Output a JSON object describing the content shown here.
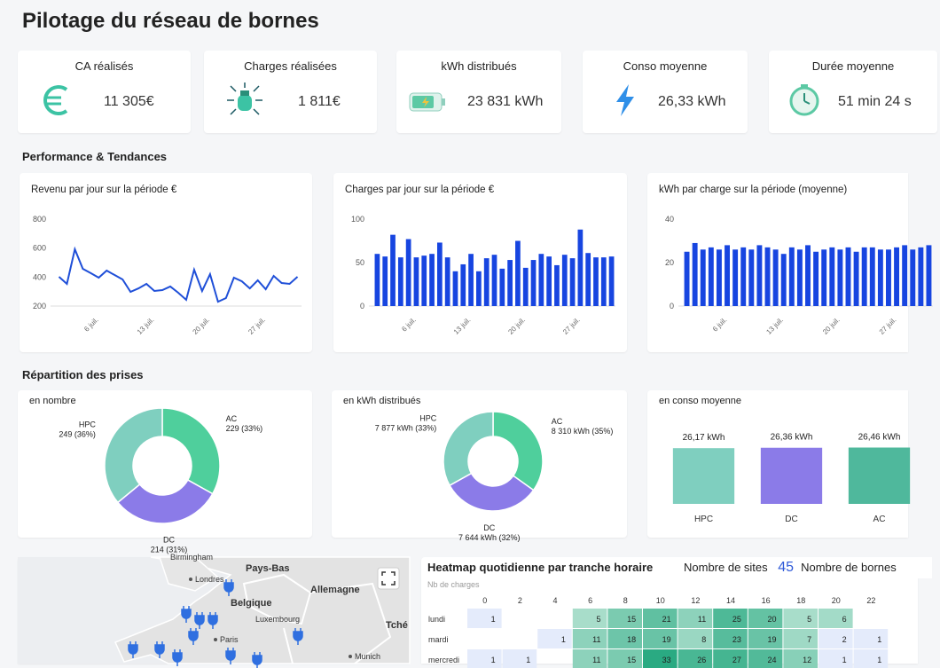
{
  "header": {
    "title": "Pilotage du réseau de bornes"
  },
  "kpis": [
    {
      "label": "CA réalisés",
      "value": "11 305€"
    },
    {
      "label": "Charges réalisées",
      "value": "1 811€"
    },
    {
      "label": "kWh distribués",
      "value": "23 831 kWh"
    },
    {
      "label": "Conso moyenne",
      "value": "26,33 kWh"
    },
    {
      "label": "Durée moyenne",
      "value": "51 min 24 s"
    }
  ],
  "sections": [
    "Performance & Tendances",
    "Répartition des prises"
  ],
  "chart_data": [
    {
      "type": "line",
      "title": "Revenu par jour sur la période €",
      "categories": [
        null,
        null,
        null,
        null,
        null,
        "6 juil.",
        null,
        null,
        null,
        null,
        null,
        null,
        "13 juil.",
        null,
        null,
        null,
        null,
        null,
        null,
        "20 juil.",
        null,
        null,
        null,
        null,
        null,
        null,
        "27 juil.",
        null,
        null,
        null,
        null
      ],
      "values": [
        402,
        353,
        592,
        457,
        427,
        396,
        445,
        414,
        384,
        298,
        322,
        353,
        304,
        310,
        335,
        292,
        243,
        451,
        304,
        420,
        230,
        255,
        396,
        371,
        322,
        378,
        316,
        408,
        359,
        353,
        402
      ],
      "color": "#1f4fd8",
      "ylim": [
        200,
        800
      ],
      "yticks": [
        200,
        400,
        600,
        800
      ]
    },
    {
      "type": "bar",
      "title": "Charges par jour sur la période €",
      "categories": [
        null,
        null,
        null,
        null,
        null,
        "6 juil.",
        null,
        null,
        null,
        null,
        null,
        null,
        "13 juil.",
        null,
        null,
        null,
        null,
        null,
        null,
        "20 juil.",
        null,
        null,
        null,
        null,
        null,
        null,
        "27 juil.",
        null,
        null,
        null,
        null
      ],
      "values": [
        60,
        57,
        82,
        56,
        77,
        56,
        58,
        60,
        73,
        56,
        40,
        48,
        60,
        40,
        55,
        59,
        43,
        53,
        75,
        44,
        53,
        60,
        57,
        47,
        59,
        55,
        88,
        61,
        56,
        56,
        57
      ],
      "color": "#1745e0",
      "ylim": [
        0,
        100
      ],
      "yticks": [
        0,
        50,
        100
      ]
    },
    {
      "type": "bar",
      "title": "kWh par charge sur la période (moyenne)",
      "categories": [
        null,
        null,
        null,
        null,
        null,
        "6 juil.",
        null,
        null,
        null,
        null,
        null,
        null,
        "13 juil.",
        null,
        null,
        null,
        null,
        null,
        null,
        "20 juil.",
        null,
        null,
        null,
        null,
        null,
        null,
        "27 juil.",
        null,
        null,
        null,
        null
      ],
      "values": [
        25,
        29,
        26,
        27,
        26,
        28,
        26,
        27,
        26,
        28,
        27,
        26,
        24,
        27,
        26,
        28,
        25,
        26,
        27,
        26,
        27,
        25,
        27,
        27,
        26,
        26,
        27,
        28,
        26,
        27,
        28
      ],
      "color": "#1745e0",
      "ylim": [
        0,
        40
      ],
      "yticks": [
        0,
        20,
        40
      ]
    },
    {
      "type": "pie",
      "title": "en nombre",
      "categories": [
        "AC",
        "DC",
        "HPC"
      ],
      "values": [
        229,
        214,
        249
      ],
      "value_labels": [
        "229 (33%)",
        "214 (31%)",
        "249 (36%)"
      ],
      "colors": [
        "#4fcf9c",
        "#8b7be8",
        "#7fcfbf"
      ]
    },
    {
      "type": "pie",
      "title": "en kWh distribués",
      "categories": [
        "AC",
        "DC",
        "HPC"
      ],
      "values": [
        8310,
        7644,
        7877
      ],
      "value_labels": [
        "8 310 kWh (35%)",
        "7 644 kWh (32%)",
        "7 877 kWh (33%)"
      ],
      "colors": [
        "#4fcf9c",
        "#8b7be8",
        "#7fcfbf"
      ]
    },
    {
      "type": "bar",
      "title": "en conso moyenne",
      "categories": [
        "HPC",
        "DC",
        "AC"
      ],
      "values": [
        26.17,
        26.36,
        26.46
      ],
      "value_labels": [
        "26,17 kWh",
        "26,36 kWh",
        "26,46 kWh"
      ],
      "colors": [
        "#7fcfbf",
        "#8b7be8",
        "#4fb89c"
      ],
      "ylim": [
        0,
        30
      ]
    },
    {
      "type": "heatmap",
      "title": "Heatmap quotidienne par tranche horaire",
      "subtitle": "Nb de charges",
      "categories": [
        0,
        2,
        4,
        6,
        8,
        10,
        12,
        14,
        16,
        18,
        20,
        22
      ],
      "rows": [
        "lundi",
        "mardi",
        "mercredi"
      ],
      "values": [
        [
          1,
          null,
          null,
          5,
          15,
          21,
          11,
          25,
          20,
          5,
          6,
          null
        ],
        [
          null,
          null,
          1,
          11,
          18,
          19,
          8,
          23,
          19,
          7,
          2,
          1
        ],
        [
          1,
          1,
          null,
          11,
          15,
          33,
          26,
          27,
          24,
          12,
          1,
          1
        ]
      ]
    }
  ],
  "counters": [
    {
      "label": "Nombre de sites",
      "value": 45
    },
    {
      "label": "Nombre de bornes"
    }
  ],
  "map": {
    "labels": [
      "Birmingham",
      "Pays-Bas",
      "Londres",
      "Allemagne",
      "Belgique",
      "Luxembourg",
      "Paris",
      "Tché",
      "Munich"
    ]
  }
}
